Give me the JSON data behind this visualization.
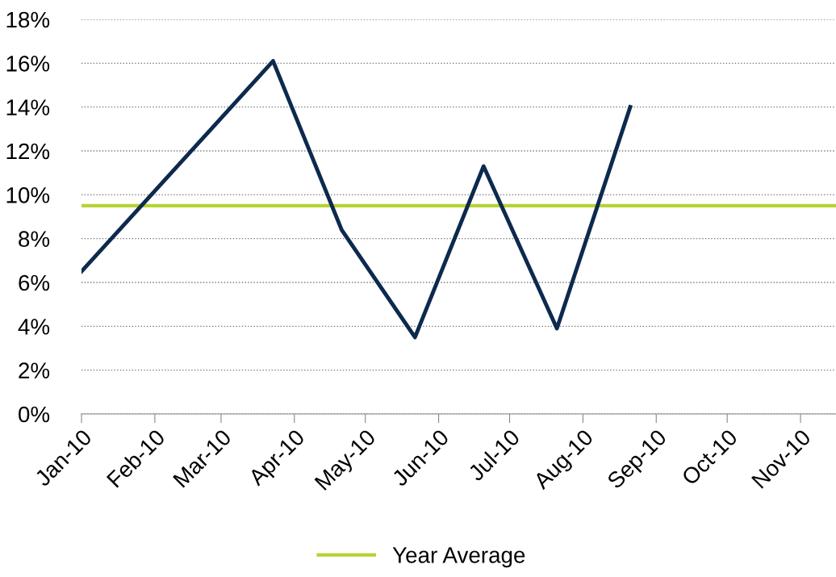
{
  "chart_data": {
    "type": "line",
    "x": [
      "2010-01-01",
      "2010-03-23",
      "2010-04-21",
      "2010-05-22",
      "2010-06-20",
      "2010-07-21",
      "2010-08-21"
    ],
    "series": [
      {
        "color": "#0d2a4e",
        "values": [
          6.5,
          16.1,
          8.4,
          3.5,
          11.3,
          3.9,
          14.0
        ]
      }
    ],
    "xlim": [
      "2010-01-01",
      "2010-11-16"
    ],
    "xticks": [
      {
        "value": "2010-01-01",
        "label": "Jan-10"
      },
      {
        "value": "2010-02-01",
        "label": "Feb-10"
      },
      {
        "value": "2010-03-01",
        "label": "Mar-10"
      },
      {
        "value": "2010-04-01",
        "label": "Apr-10"
      },
      {
        "value": "2010-05-01",
        "label": "May-10"
      },
      {
        "value": "2010-06-01",
        "label": "Jun-10"
      },
      {
        "value": "2010-07-01",
        "label": "Jul-10"
      },
      {
        "value": "2010-08-01",
        "label": "Aug-10"
      },
      {
        "value": "2010-09-01",
        "label": "Sep-10"
      },
      {
        "value": "2010-10-01",
        "label": "Oct-10"
      },
      {
        "value": "2010-11-01",
        "label": "Nov-10"
      }
    ],
    "ylim": [
      0,
      18
    ],
    "yticks": [
      {
        "value": 0,
        "label": "0%"
      },
      {
        "value": 2,
        "label": "2%"
      },
      {
        "value": 4,
        "label": "4%"
      },
      {
        "value": 6,
        "label": "6%"
      },
      {
        "value": 8,
        "label": "8%"
      },
      {
        "value": 10,
        "label": "10%"
      },
      {
        "value": 12,
        "label": "12%"
      },
      {
        "value": 14,
        "label": "14%"
      },
      {
        "value": 16,
        "label": "16%"
      },
      {
        "value": 18,
        "label": "18%"
      }
    ],
    "ref_lines": [
      {
        "axis": "y",
        "value": 9.5,
        "label": "Year Average",
        "color": "#b5d334"
      }
    ],
    "grid": "y",
    "legend": "bottom",
    "marker": "none",
    "line_style": "solid"
  }
}
